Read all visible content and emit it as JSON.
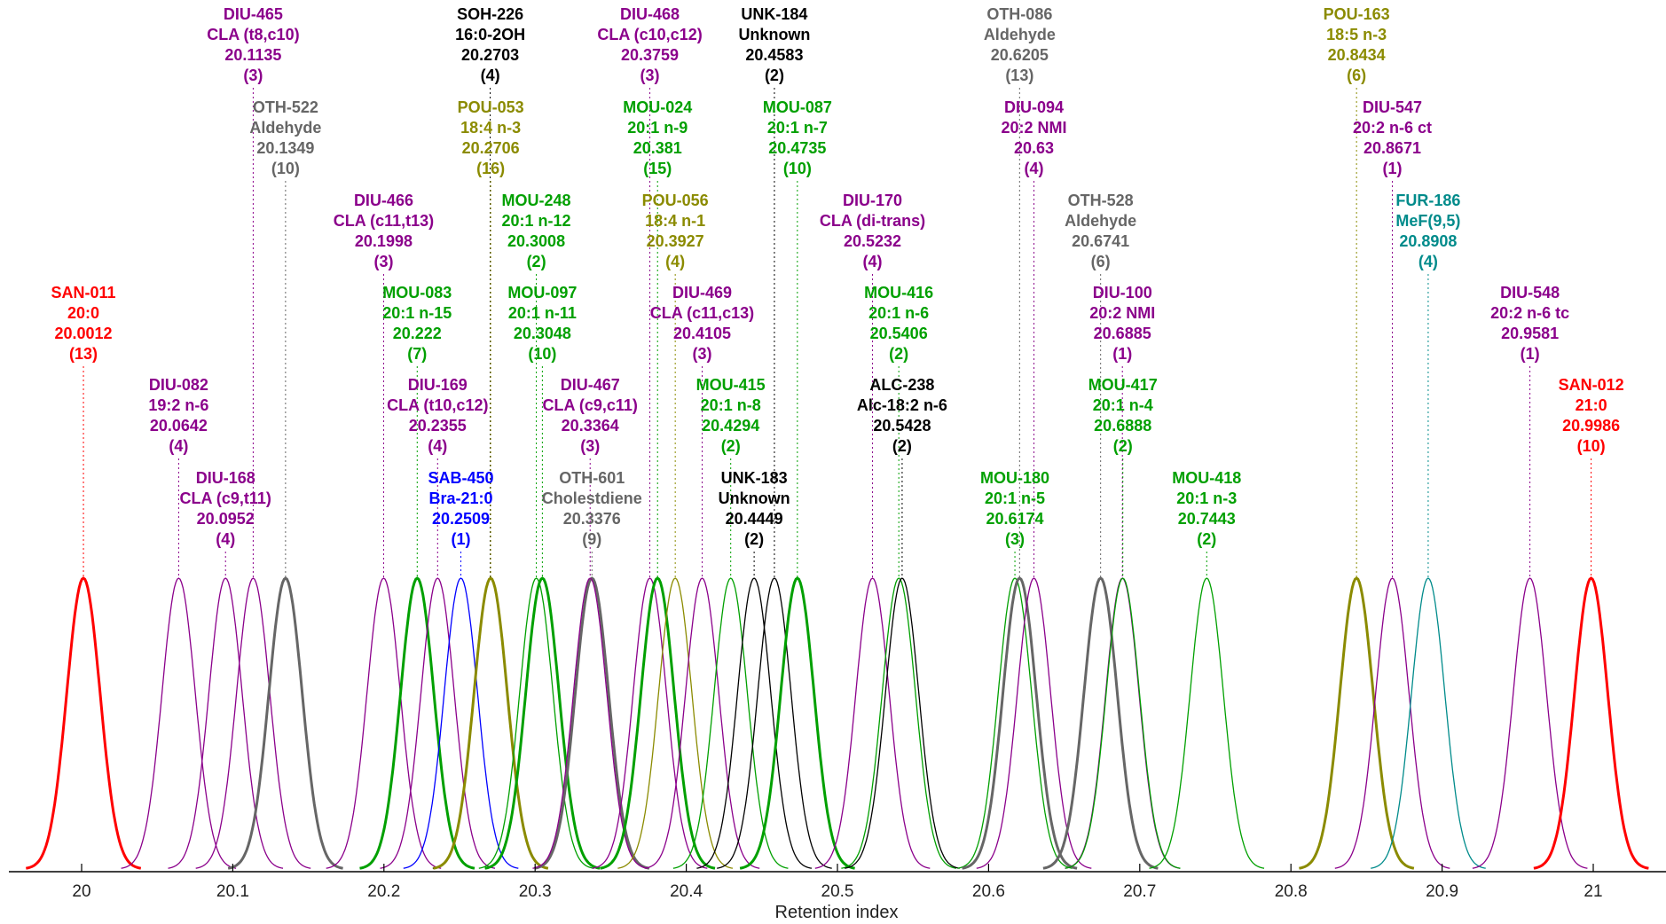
{
  "chart_data": {
    "type": "line",
    "xlabel": "Retention index",
    "xlim": [
      19.95,
      21.03
    ],
    "ylim": [
      0,
      1
    ],
    "x_ticks": [
      "20",
      "20.1",
      "20.2",
      "20.3",
      "20.4",
      "20.5",
      "20.6",
      "20.7",
      "20.8",
      "20.9",
      "21"
    ],
    "grid": false,
    "legend": "none",
    "colors": {
      "SAN": "#ff0000",
      "DIU": "#8b008b",
      "OTH": "#666666",
      "SOH": "#000000",
      "UNK": "#000000",
      "ALC": "#000000",
      "POU": "#8b8b00",
      "MOU": "#00a000",
      "SAB": "#0000ff",
      "FUR": "#008b8b"
    },
    "peaks": [
      {
        "code": "SAN-011",
        "name": "20:0",
        "ri": 20.0012,
        "ri_label": "20.0012",
        "count": "(13)",
        "group": "SAN",
        "bold": true
      },
      {
        "code": "DIU-082",
        "name": "19:2 n-6",
        "ri": 20.0642,
        "ri_label": "20.0642",
        "count": "(4)",
        "group": "DIU",
        "bold": false
      },
      {
        "code": "DIU-168",
        "name": "CLA (c9,t11)",
        "ri": 20.0952,
        "ri_label": "20.0952",
        "count": "(4)",
        "group": "DIU",
        "bold": false
      },
      {
        "code": "DIU-465",
        "name": "CLA (t8,c10)",
        "ri": 20.1135,
        "ri_label": "20.1135",
        "count": "(3)",
        "group": "DIU",
        "bold": false
      },
      {
        "code": "OTH-522",
        "name": "Aldehyde",
        "ri": 20.1349,
        "ri_label": "20.1349",
        "count": "(10)",
        "group": "OTH",
        "bold": true
      },
      {
        "code": "DIU-466",
        "name": "CLA (c11,t13)",
        "ri": 20.1998,
        "ri_label": "20.1998",
        "count": "(3)",
        "group": "DIU",
        "bold": false
      },
      {
        "code": "MOU-083",
        "name": "20:1 n-15",
        "ri": 20.222,
        "ri_label": "20.222",
        "count": "(7)",
        "group": "MOU",
        "bold": true
      },
      {
        "code": "DIU-169",
        "name": "CLA (t10,c12)",
        "ri": 20.2355,
        "ri_label": "20.2355",
        "count": "(4)",
        "group": "DIU",
        "bold": false
      },
      {
        "code": "SAB-450",
        "name": "Bra-21:0",
        "ri": 20.2509,
        "ri_label": "20.2509",
        "count": "(1)",
        "group": "SAB",
        "bold": false
      },
      {
        "code": "SOH-226",
        "name": "16:0-2OH",
        "ri": 20.2703,
        "ri_label": "20.2703",
        "count": "(4)",
        "group": "SOH",
        "bold": false
      },
      {
        "code": "POU-053",
        "name": "18:4 n-3",
        "ri": 20.2706,
        "ri_label": "20.2706",
        "count": "(16)",
        "group": "POU",
        "bold": true
      },
      {
        "code": "MOU-248",
        "name": "20:1 n-12",
        "ri": 20.3008,
        "ri_label": "20.3008",
        "count": "(2)",
        "group": "MOU",
        "bold": false
      },
      {
        "code": "MOU-097",
        "name": "20:1 n-11",
        "ri": 20.3048,
        "ri_label": "20.3048",
        "count": "(10)",
        "group": "MOU",
        "bold": true
      },
      {
        "code": "OTH-601",
        "name": "Cholestdiene",
        "ri": 20.3376,
        "ri_label": "20.3376",
        "count": "(9)",
        "group": "OTH",
        "bold": true
      },
      {
        "code": "DIU-467",
        "name": "CLA (c9,c11)",
        "ri": 20.3364,
        "ri_label": "20.3364",
        "count": "(3)",
        "group": "DIU",
        "bold": false
      },
      {
        "code": "DIU-468",
        "name": "CLA (c10,c12)",
        "ri": 20.3759,
        "ri_label": "20.3759",
        "count": "(3)",
        "group": "DIU",
        "bold": false
      },
      {
        "code": "MOU-024",
        "name": "20:1 n-9",
        "ri": 20.381,
        "ri_label": "20.381",
        "count": "(15)",
        "group": "MOU",
        "bold": true
      },
      {
        "code": "POU-056",
        "name": "18:4 n-1",
        "ri": 20.3927,
        "ri_label": "20.3927",
        "count": "(4)",
        "group": "POU",
        "bold": false
      },
      {
        "code": "DIU-469",
        "name": "CLA (c11,c13)",
        "ri": 20.4105,
        "ri_label": "20.4105",
        "count": "(3)",
        "group": "DIU",
        "bold": false
      },
      {
        "code": "MOU-415",
        "name": "20:1 n-8",
        "ri": 20.4294,
        "ri_label": "20.4294",
        "count": "(2)",
        "group": "MOU",
        "bold": false
      },
      {
        "code": "UNK-183",
        "name": "Unknown",
        "ri": 20.4449,
        "ri_label": "20.4449",
        "count": "(2)",
        "group": "UNK",
        "bold": false
      },
      {
        "code": "UNK-184",
        "name": "Unknown",
        "ri": 20.4583,
        "ri_label": "20.4583",
        "count": "(2)",
        "group": "UNK",
        "bold": false
      },
      {
        "code": "MOU-087",
        "name": "20:1 n-7",
        "ri": 20.4735,
        "ri_label": "20.4735",
        "count": "(10)",
        "group": "MOU",
        "bold": true
      },
      {
        "code": "DIU-170",
        "name": "CLA (di-trans)",
        "ri": 20.5232,
        "ri_label": "20.5232",
        "count": "(4)",
        "group": "DIU",
        "bold": false
      },
      {
        "code": "MOU-416",
        "name": "20:1 n-6",
        "ri": 20.5406,
        "ri_label": "20.5406",
        "count": "(2)",
        "group": "MOU",
        "bold": false
      },
      {
        "code": "ALC-238",
        "name": "Alc-18:2 n-6",
        "ri": 20.5428,
        "ri_label": "20.5428",
        "count": "(2)",
        "group": "ALC",
        "bold": false
      },
      {
        "code": "MOU-180",
        "name": "20:1 n-5",
        "ri": 20.6174,
        "ri_label": "20.6174",
        "count": "(3)",
        "group": "MOU",
        "bold": false
      },
      {
        "code": "OTH-086",
        "name": "Aldehyde",
        "ri": 20.6205,
        "ri_label": "20.6205",
        "count": "(13)",
        "group": "OTH",
        "bold": true
      },
      {
        "code": "DIU-094",
        "name": "20:2 NMI",
        "ri": 20.63,
        "ri_label": "20.63",
        "count": "(4)",
        "group": "DIU",
        "bold": false
      },
      {
        "code": "OTH-528",
        "name": "Aldehyde",
        "ri": 20.6741,
        "ri_label": "20.6741",
        "count": "(6)",
        "group": "OTH",
        "bold": true
      },
      {
        "code": "DIU-100",
        "name": "20:2 NMI",
        "ri": 20.6885,
        "ri_label": "20.6885",
        "count": "(1)",
        "group": "DIU",
        "bold": false
      },
      {
        "code": "MOU-417",
        "name": "20:1 n-4",
        "ri": 20.6888,
        "ri_label": "20.6888",
        "count": "(2)",
        "group": "MOU",
        "bold": false
      },
      {
        "code": "MOU-418",
        "name": "20:1 n-3",
        "ri": 20.7443,
        "ri_label": "20.7443",
        "count": "(2)",
        "group": "MOU",
        "bold": false
      },
      {
        "code": "POU-163",
        "name": "18:5 n-3",
        "ri": 20.8434,
        "ri_label": "20.8434",
        "count": "(6)",
        "group": "POU",
        "bold": true
      },
      {
        "code": "DIU-547",
        "name": "20:2 n-6 ct",
        "ri": 20.8671,
        "ri_label": "20.8671",
        "count": "(1)",
        "group": "DIU",
        "bold": false
      },
      {
        "code": "FUR-186",
        "name": "MeF(9,5)",
        "ri": 20.8908,
        "ri_label": "20.8908",
        "count": "(4)",
        "group": "FUR",
        "bold": false
      },
      {
        "code": "DIU-548",
        "name": "20:2 n-6 tc",
        "ri": 20.9581,
        "ri_label": "20.9581",
        "count": "(1)",
        "group": "DIU",
        "bold": false
      },
      {
        "code": "SAN-012",
        "name": "21:0",
        "ri": 20.9986,
        "ri_label": "20.9986",
        "count": "(10)",
        "group": "SAN",
        "bold": true
      }
    ]
  }
}
